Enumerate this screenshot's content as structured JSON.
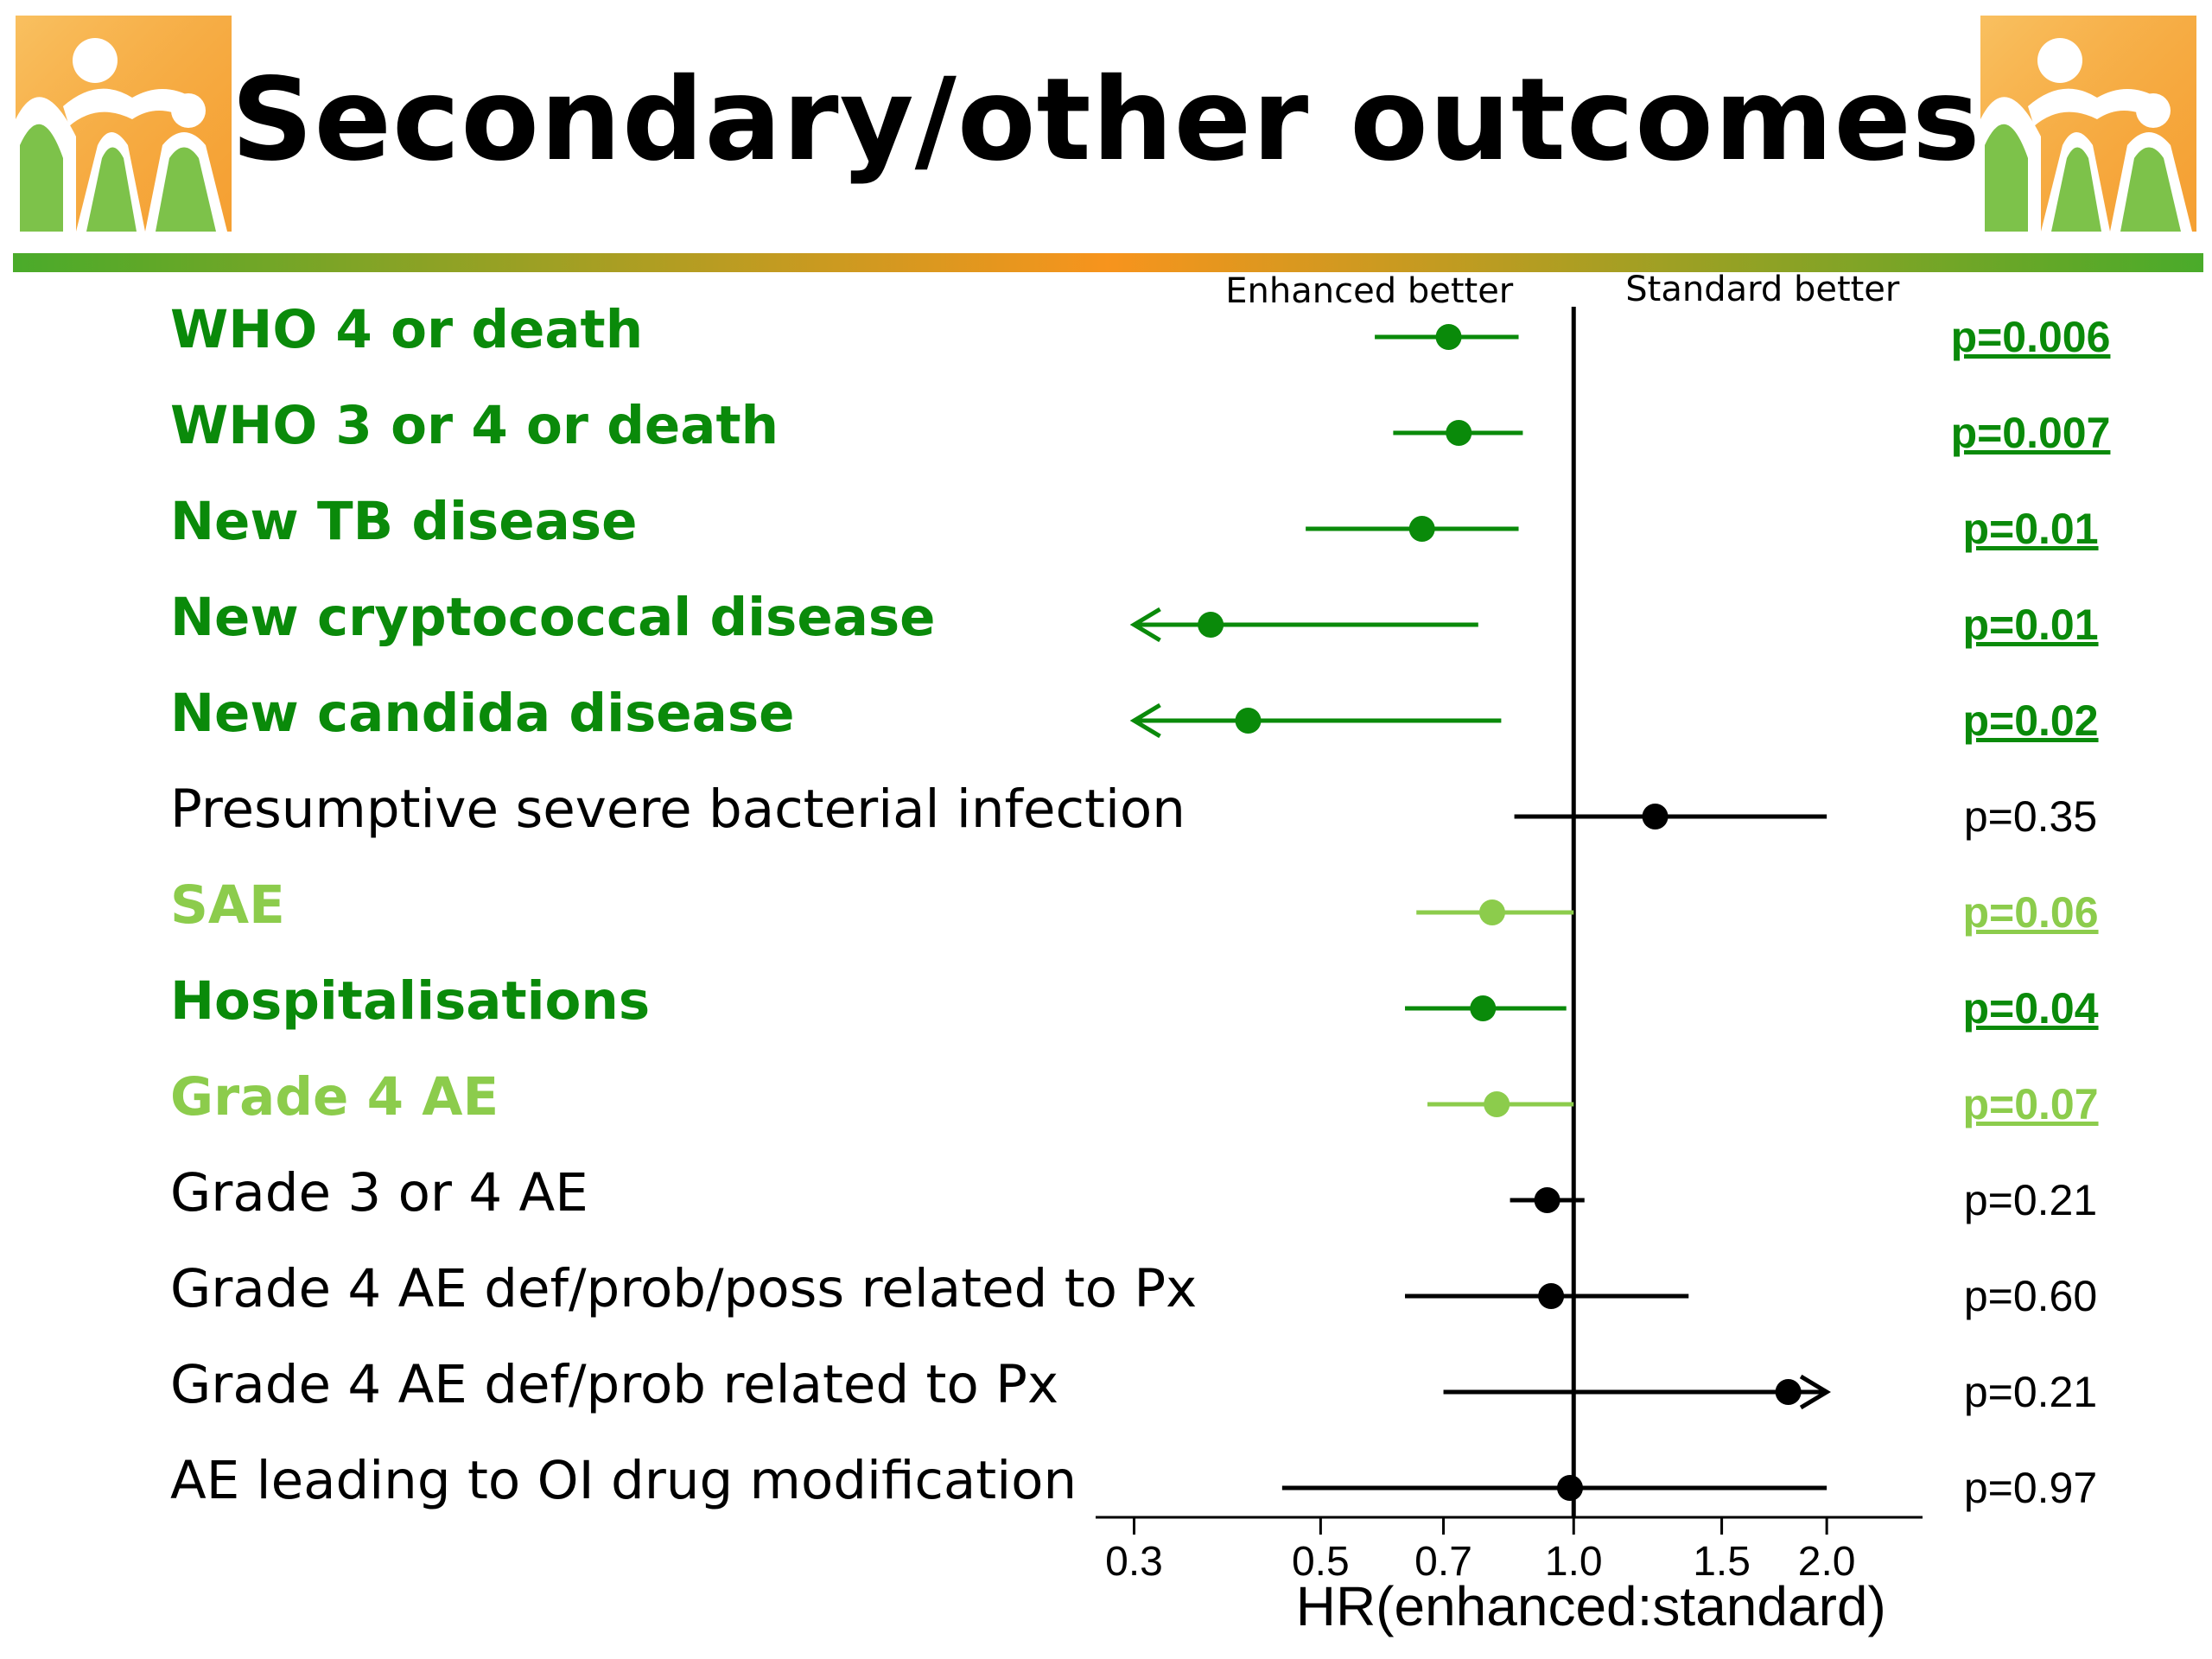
{
  "title": "Secondary/other outcomes",
  "colors": {
    "significant": "#0a8a0a",
    "borderline": "#8ccc4c",
    "nonsignificant": "#000000",
    "logo_orange": "#f7a83e",
    "logo_green": "#7dc24a"
  },
  "logos": {
    "left": "family-logo-icon",
    "right": "family-logo-icon"
  },
  "chart_data": {
    "type": "forest",
    "xlabel": "HR(enhanced:standard)",
    "xscale": "log",
    "xlim": [
      0.27,
      2.6
    ],
    "xticks": [
      0.3,
      0.5,
      0.7,
      1.0,
      1.5,
      2.0
    ],
    "xtick_labels": [
      "0.3",
      "0.5",
      "0.7",
      "1.0",
      "1.5",
      "2.0"
    ],
    "reference_line": 1.0,
    "direction_labels": {
      "left": "Enhanced better",
      "right": "Standard better"
    },
    "rows": [
      {
        "label": "WHO 4 or death",
        "hr": 0.71,
        "lo": 0.58,
        "hi": 0.86,
        "p": "p=0.006",
        "style": "significant"
      },
      {
        "label": "WHO 3 or 4 or death",
        "hr": 0.73,
        "lo": 0.61,
        "hi": 0.87,
        "p": "p=0.007",
        "style": "significant"
      },
      {
        "label": "New TB disease",
        "hr": 0.66,
        "lo": 0.48,
        "hi": 0.86,
        "p": "p=0.01",
        "style": "significant"
      },
      {
        "label": "New cryptococcal disease",
        "hr": 0.37,
        "lo": 0.3,
        "hi": 0.77,
        "p": "p=0.01",
        "style": "significant",
        "lo_arrow": true
      },
      {
        "label": "New candida disease",
        "hr": 0.41,
        "lo": 0.3,
        "hi": 0.82,
        "p": "p=0.02",
        "style": "significant",
        "lo_arrow": true
      },
      {
        "label": "Presumptive severe bacterial infection",
        "hr": 1.25,
        "lo": 0.85,
        "hi": 2.0,
        "p": "p=0.35",
        "style": "nonsignificant"
      },
      {
        "label": "SAE",
        "hr": 0.8,
        "lo": 0.65,
        "hi": 1.0,
        "p": "p=0.06",
        "style": "borderline"
      },
      {
        "label": "Hospitalisations",
        "hr": 0.78,
        "lo": 0.63,
        "hi": 0.98,
        "p": "p=0.04",
        "style": "significant"
      },
      {
        "label": "Grade 4 AE",
        "hr": 0.81,
        "lo": 0.67,
        "hi": 1.0,
        "p": "p=0.07",
        "style": "borderline"
      },
      {
        "label": "Grade 3 or 4 AE",
        "hr": 0.93,
        "lo": 0.84,
        "hi": 1.03,
        "p": "p=0.21",
        "style": "nonsignificant"
      },
      {
        "label": "Grade 4 AE def/prob/poss related to Px",
        "hr": 0.94,
        "lo": 0.63,
        "hi": 1.37,
        "p": "p=0.60",
        "style": "nonsignificant"
      },
      {
        "label": "Grade 4 AE def/prob related to Px",
        "hr": 1.8,
        "lo": 0.7,
        "hi": 2.0,
        "p": "p=0.21",
        "style": "nonsignificant",
        "hi_arrow": true
      },
      {
        "label": "AE leading to OI drug modification",
        "hr": 0.99,
        "lo": 0.45,
        "hi": 2.0,
        "p": "p=0.97",
        "style": "nonsignificant"
      }
    ]
  }
}
